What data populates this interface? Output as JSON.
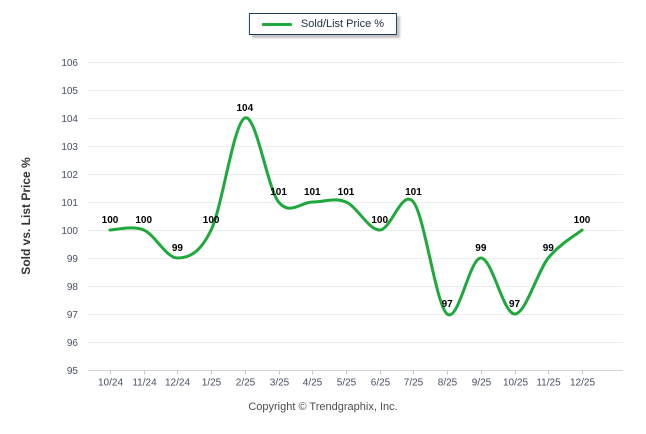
{
  "legend": {
    "label": "Sold/List Price %"
  },
  "footer": {
    "copyright": "Copyright © Trendgraphix, Inc."
  },
  "chart_data": {
    "type": "line",
    "title": "",
    "xlabel": "",
    "ylabel": "Sold vs. List Price %",
    "categories": [
      "10/24",
      "11/24",
      "12/24",
      "1/25",
      "2/25",
      "3/25",
      "4/25",
      "5/25",
      "6/25",
      "7/25",
      "8/25",
      "9/25",
      "10/25",
      "11/25",
      "12/25"
    ],
    "series": [
      {
        "name": "Sold/List Price %",
        "values": [
          100,
          100,
          99,
          100,
          104,
          101,
          101,
          101,
          100,
          101,
          97,
          99,
          97,
          99,
          100
        ]
      }
    ],
    "ylim": [
      95,
      106
    ],
    "y_ticks": [
      95,
      96,
      97,
      98,
      99,
      100,
      101,
      102,
      103,
      104,
      105,
      106
    ],
    "grid": "horizontal",
    "legend_position": "top-center",
    "data_labels": true,
    "smooth": true,
    "line_color": "#1fa83c",
    "colors": {
      "grid": "#ececec",
      "axis": "#d5d5d5",
      "tick": "#c8c8c8",
      "tick_text": "#474f63",
      "label_text": "#000000",
      "ylabel_text": "#333333",
      "legend_border": "#203a60",
      "legend_text": "#1f2c47",
      "copyright_text": "#4d4d4d"
    }
  }
}
